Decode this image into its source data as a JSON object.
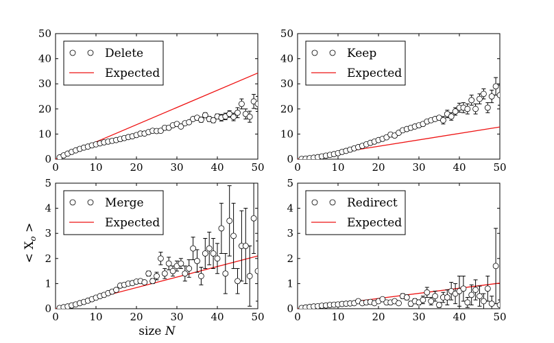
{
  "figure": {
    "ylabel": "< X",
    "ylabel_sub": "o",
    "ylabel_end": " >",
    "xlabel": "size ",
    "xlabel_italic": "N"
  },
  "chart_data": [
    {
      "type": "scatter",
      "panel": "Delete",
      "xlim": [
        0,
        50
      ],
      "ylim": [
        0,
        50
      ],
      "xticks": [
        "0",
        "10",
        "20",
        "30",
        "40",
        "50"
      ],
      "yticks": [
        "0",
        "10",
        "20",
        "30",
        "40",
        "50"
      ],
      "legend": {
        "placement": "top-left",
        "entries": [
          "Delete",
          "Expected"
        ]
      },
      "series": [
        {
          "name": "Delete",
          "kind": "markers-errorbars",
          "marker_color": "#ffffff",
          "x": [
            1,
            2,
            3,
            4,
            5,
            6,
            7,
            8,
            9,
            10,
            11,
            12,
            13,
            14,
            15,
            16,
            17,
            18,
            19,
            20,
            21,
            22,
            23,
            24,
            25,
            26,
            27,
            28,
            29,
            30,
            31,
            32,
            33,
            34,
            35,
            36,
            37,
            38,
            39,
            40,
            41,
            42,
            43,
            44,
            45,
            46,
            47,
            48,
            49,
            50
          ],
          "y": [
            0.7,
            1.5,
            2.2,
            2.9,
            3.5,
            4.1,
            4.6,
            5.0,
            5.5,
            5.9,
            6.3,
            6.7,
            7.0,
            7.3,
            7.6,
            8.0,
            8.4,
            8.8,
            9.1,
            9.6,
            10.2,
            10.2,
            10.8,
            11.3,
            11.2,
            11.3,
            12.5,
            12.5,
            13.5,
            14.0,
            13.0,
            14.3,
            14.7,
            16.0,
            16.5,
            15.7,
            17.5,
            16.0,
            15.5,
            17.0,
            16.5,
            17.0,
            18.0,
            16.8,
            18.5,
            22.0,
            18.0,
            16.9,
            23.0,
            22.0
          ],
          "yerr": [
            0,
            0,
            0,
            0,
            0,
            0,
            0,
            0,
            0,
            0,
            0,
            0,
            0,
            0,
            0,
            0,
            0,
            0,
            0,
            0,
            0,
            0,
            0,
            0,
            0,
            0,
            0,
            0,
            0,
            0,
            0,
            0,
            0,
            0,
            0,
            1.0,
            1.0,
            1.0,
            1.0,
            1.0,
            1.3,
            1.3,
            1.3,
            1.5,
            2.0,
            2.0,
            2.0,
            2.2,
            2.8,
            3.0
          ]
        },
        {
          "name": "Expected",
          "kind": "line",
          "color": "#ee1111",
          "x": [
            0,
            50
          ],
          "y": [
            0,
            34.3
          ]
        }
      ]
    },
    {
      "type": "scatter",
      "panel": "Keep",
      "xlim": [
        0,
        50
      ],
      "ylim": [
        0,
        50
      ],
      "xticks": [
        "0",
        "10",
        "20",
        "30",
        "40",
        "50"
      ],
      "yticks": [
        "0",
        "10",
        "20",
        "30",
        "40",
        "50"
      ],
      "legend": {
        "placement": "top-left",
        "entries": [
          "Keep",
          "Expected"
        ]
      },
      "series": [
        {
          "name": "Keep",
          "kind": "markers-errorbars",
          "marker_color": "#ffffff",
          "x": [
            1,
            2,
            3,
            4,
            5,
            6,
            7,
            8,
            9,
            10,
            11,
            12,
            13,
            14,
            15,
            16,
            17,
            18,
            19,
            20,
            21,
            22,
            23,
            24,
            25,
            26,
            27,
            28,
            29,
            30,
            31,
            32,
            33,
            34,
            35,
            36,
            37,
            38,
            39,
            40,
            41,
            42,
            43,
            44,
            45,
            46,
            47,
            48,
            49,
            50
          ],
          "y": [
            0.1,
            0.2,
            0.4,
            0.6,
            0.8,
            1.1,
            1.4,
            1.7,
            2.0,
            2.4,
            2.9,
            3.3,
            3.8,
            4.3,
            4.8,
            5.3,
            5.9,
            6.5,
            7.0,
            7.6,
            8.1,
            8.7,
            9.8,
            9.4,
            10.5,
            11.5,
            12.0,
            12.5,
            13.0,
            13.5,
            14.0,
            15.0,
            15.5,
            16.0,
            16.5,
            15.5,
            18.0,
            17.0,
            19.0,
            20.5,
            20.5,
            20.0,
            23.5,
            20.0,
            24.0,
            26.0,
            20.5,
            25.0,
            29.0,
            25.5
          ],
          "yerr": [
            0,
            0,
            0,
            0,
            0,
            0,
            0,
            0,
            0,
            0,
            0,
            0,
            0,
            0,
            0,
            0,
            0,
            0,
            0,
            0,
            0,
            0,
            0,
            0,
            0,
            0,
            0,
            0,
            0,
            0,
            0,
            0,
            0,
            0,
            0,
            1.5,
            1.5,
            1.5,
            1.5,
            1.8,
            2.0,
            2.0,
            2.0,
            2.0,
            2.0,
            2.0,
            2.0,
            2.5,
            3.5,
            4.0
          ]
        },
        {
          "name": "Expected",
          "kind": "line",
          "color": "#ee1111",
          "x": [
            0,
            50
          ],
          "y": [
            0,
            12.8
          ]
        }
      ]
    },
    {
      "type": "scatter",
      "panel": "Merge",
      "xlim": [
        0,
        50
      ],
      "ylim": [
        0,
        5
      ],
      "xticks": [
        "0",
        "10",
        "20",
        "30",
        "40",
        "50"
      ],
      "yticks": [
        "0",
        "1",
        "2",
        "3",
        "4",
        "5"
      ],
      "legend": {
        "placement": "top-left",
        "entries": [
          "Merge",
          "Expected"
        ]
      },
      "series": [
        {
          "name": "Merge",
          "kind": "markers-errorbars",
          "marker_color": "#ffffff",
          "x": [
            1,
            2,
            3,
            4,
            5,
            6,
            7,
            8,
            9,
            10,
            11,
            12,
            13,
            14,
            15,
            16,
            17,
            18,
            19,
            20,
            21,
            22,
            23,
            24,
            25,
            26,
            27,
            28,
            29,
            30,
            31,
            32,
            33,
            34,
            35,
            36,
            37,
            38,
            39,
            40,
            41,
            42,
            43,
            44,
            45,
            46,
            47,
            48,
            49,
            50
          ],
          "y": [
            0.03,
            0.06,
            0.09,
            0.13,
            0.17,
            0.22,
            0.27,
            0.32,
            0.38,
            0.44,
            0.5,
            0.55,
            0.62,
            0.68,
            0.75,
            0.92,
            0.95,
            1.0,
            1.02,
            1.08,
            1.1,
            1.05,
            1.4,
            1.1,
            1.3,
            2.0,
            1.4,
            1.8,
            1.5,
            1.7,
            1.8,
            1.4,
            1.6,
            2.4,
            1.9,
            1.3,
            2.2,
            2.4,
            2.2,
            2.0,
            3.2,
            1.4,
            3.5,
            2.9,
            1.1,
            2.5,
            2.5,
            1.3,
            3.6,
            1.5
          ],
          "yerr": [
            0,
            0,
            0,
            0,
            0,
            0,
            0,
            0,
            0,
            0,
            0,
            0,
            0,
            0,
            0,
            0,
            0,
            0,
            0,
            0,
            0,
            0,
            0.1,
            0.1,
            0.15,
            0.25,
            0.2,
            0.25,
            0.2,
            0.2,
            0.2,
            0.3,
            0.35,
            0.45,
            0.45,
            0.35,
            0.6,
            0.65,
            0.6,
            0.6,
            1.0,
            0.8,
            1.4,
            1.3,
            0.5,
            1.4,
            1.5,
            1.2,
            1.4,
            1.2
          ]
        },
        {
          "name": "Expected",
          "kind": "line",
          "color": "#ee1111",
          "x": [
            0,
            50
          ],
          "y": [
            0,
            2.1
          ]
        }
      ]
    },
    {
      "type": "scatter",
      "panel": "Redirect",
      "xlim": [
        0,
        50
      ],
      "ylim": [
        0,
        5
      ],
      "xticks": [
        "0",
        "10",
        "20",
        "30",
        "40",
        "50"
      ],
      "yticks": [
        "0",
        "1",
        "2",
        "3",
        "4",
        "5"
      ],
      "legend": {
        "placement": "top-left",
        "entries": [
          "Redirect",
          "Expected"
        ]
      },
      "series": [
        {
          "name": "Redirect",
          "kind": "markers-errorbars",
          "marker_color": "#ffffff",
          "x": [
            1,
            2,
            3,
            4,
            5,
            6,
            7,
            8,
            9,
            10,
            11,
            12,
            13,
            14,
            15,
            16,
            17,
            18,
            19,
            20,
            21,
            22,
            23,
            24,
            25,
            26,
            27,
            28,
            29,
            30,
            31,
            32,
            33,
            34,
            35,
            36,
            37,
            38,
            39,
            40,
            41,
            42,
            43,
            44,
            45,
            46,
            47,
            48,
            49,
            50
          ],
          "y": [
            0.03,
            0.05,
            0.07,
            0.09,
            0.1,
            0.12,
            0.13,
            0.15,
            0.16,
            0.17,
            0.19,
            0.2,
            0.21,
            0.22,
            0.3,
            0.22,
            0.25,
            0.27,
            0.22,
            0.3,
            0.38,
            0.25,
            0.25,
            0.3,
            0.22,
            0.5,
            0.45,
            0.2,
            0.3,
            0.25,
            0.35,
            0.65,
            0.3,
            0.5,
            0.15,
            0.45,
            0.45,
            0.7,
            0.6,
            0.7,
            0.8,
            0.25,
            0.55,
            0.75,
            0.5,
            0.3,
            0.8,
            0.2,
            1.7,
            0.15
          ],
          "yerr": [
            0,
            0,
            0,
            0,
            0,
            0,
            0,
            0,
            0,
            0,
            0,
            0,
            0,
            0,
            0,
            0,
            0,
            0,
            0,
            0,
            0,
            0,
            0,
            0,
            0,
            0.1,
            0.1,
            0.1,
            0.1,
            0.1,
            0.15,
            0.2,
            0.15,
            0.2,
            0.1,
            0.2,
            0.3,
            0.35,
            0.4,
            0.6,
            0.5,
            0.2,
            0.4,
            0.4,
            0.4,
            0.3,
            0.5,
            0.3,
            1.5,
            0.2
          ]
        },
        {
          "name": "Expected",
          "kind": "line",
          "color": "#ee1111",
          "x": [
            0,
            50
          ],
          "y": [
            0,
            1.02
          ]
        }
      ]
    }
  ]
}
